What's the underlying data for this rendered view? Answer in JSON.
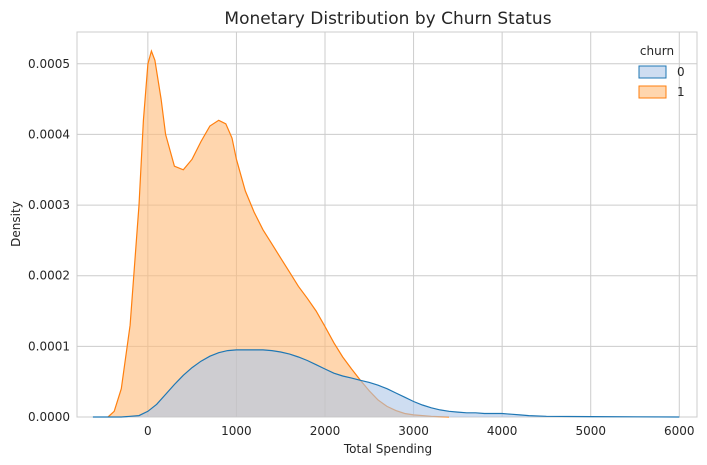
{
  "chart_data": {
    "type": "area",
    "title": "Monetary Distribution by Churn Status",
    "xlabel": "Total Spending",
    "ylabel": "Density",
    "xlim": [
      -800,
      6200
    ],
    "ylim": [
      0,
      0.000545
    ],
    "xticks": [
      {
        "value": 0,
        "label": "0"
      },
      {
        "value": 1000,
        "label": "1000"
      },
      {
        "value": 2000,
        "label": "2000"
      },
      {
        "value": 3000,
        "label": "3000"
      },
      {
        "value": 4000,
        "label": "4000"
      },
      {
        "value": 5000,
        "label": "5000"
      },
      {
        "value": 6000,
        "label": "6000"
      }
    ],
    "yticks": [
      {
        "value": 0,
        "label": "0.0000"
      },
      {
        "value": 0.0001,
        "label": "0.0001"
      },
      {
        "value": 0.0002,
        "label": "0.0002"
      },
      {
        "value": 0.0003,
        "label": "0.0003"
      },
      {
        "value": 0.0004,
        "label": "0.0004"
      },
      {
        "value": 0.0005,
        "label": "0.0005"
      }
    ],
    "grid": true,
    "legend": {
      "title": "churn",
      "placement": "top-right"
    },
    "series": [
      {
        "name": "0",
        "color": "#1f77b4",
        "fill": "#aec7e8",
        "points": [
          [
            -620,
            0.0
          ],
          [
            -300,
            0.0
          ],
          [
            -100,
            2e-06
          ],
          [
            0,
            8e-06
          ],
          [
            100,
            1.8e-05
          ],
          [
            200,
            3.2e-05
          ],
          [
            300,
            4.6e-05
          ],
          [
            400,
            5.9e-05
          ],
          [
            500,
            7e-05
          ],
          [
            600,
            7.9e-05
          ],
          [
            700,
            8.6e-05
          ],
          [
            800,
            9.1e-05
          ],
          [
            900,
            9.4e-05
          ],
          [
            1000,
            9.5e-05
          ],
          [
            1100,
            9.5e-05
          ],
          [
            1200,
            9.5e-05
          ],
          [
            1300,
            9.5e-05
          ],
          [
            1400,
            9.4e-05
          ],
          [
            1500,
            9.2e-05
          ],
          [
            1600,
            8.9e-05
          ],
          [
            1700,
            8.5e-05
          ],
          [
            1800,
            8e-05
          ],
          [
            1900,
            7.4e-05
          ],
          [
            2000,
            6.8e-05
          ],
          [
            2100,
            6.2e-05
          ],
          [
            2200,
            5.8e-05
          ],
          [
            2300,
            5.5e-05
          ],
          [
            2400,
            5.2e-05
          ],
          [
            2500,
            4.9e-05
          ],
          [
            2600,
            4.5e-05
          ],
          [
            2700,
            4e-05
          ],
          [
            2800,
            3.4e-05
          ],
          [
            2900,
            2.8e-05
          ],
          [
            3000,
            2.2e-05
          ],
          [
            3100,
            1.7e-05
          ],
          [
            3200,
            1.3e-05
          ],
          [
            3300,
            1e-05
          ],
          [
            3400,
            8e-06
          ],
          [
            3500,
            7e-06
          ],
          [
            3600,
            6e-06
          ],
          [
            3700,
            6e-06
          ],
          [
            3800,
            5e-06
          ],
          [
            3900,
            5e-06
          ],
          [
            4000,
            5e-06
          ],
          [
            4100,
            4e-06
          ],
          [
            4200,
            3e-06
          ],
          [
            4300,
            2e-06
          ],
          [
            4500,
            1e-06
          ],
          [
            5000,
            5e-07
          ],
          [
            6000,
            0.0
          ]
        ]
      },
      {
        "name": "1",
        "color": "#ff7f0e",
        "fill": "#ffbb78",
        "points": [
          [
            -450,
            0.0
          ],
          [
            -380,
            8e-06
          ],
          [
            -300,
            4e-05
          ],
          [
            -200,
            0.00013
          ],
          [
            -100,
            0.0003
          ],
          [
            -50,
            0.00042
          ],
          [
            0,
            0.0005
          ],
          [
            40,
            0.000518
          ],
          [
            80,
            0.000505
          ],
          [
            150,
            0.00045
          ],
          [
            200,
            0.0004
          ],
          [
            300,
            0.000355
          ],
          [
            400,
            0.00035
          ],
          [
            500,
            0.000365
          ],
          [
            600,
            0.00039
          ],
          [
            700,
            0.000412
          ],
          [
            800,
            0.00042
          ],
          [
            880,
            0.000415
          ],
          [
            950,
            0.000395
          ],
          [
            1000,
            0.000365
          ],
          [
            1100,
            0.00032
          ],
          [
            1200,
            0.00029
          ],
          [
            1300,
            0.000265
          ],
          [
            1400,
            0.000245
          ],
          [
            1500,
            0.000225
          ],
          [
            1600,
            0.000205
          ],
          [
            1700,
            0.000185
          ],
          [
            1800,
            0.000168
          ],
          [
            1900,
            0.00015
          ],
          [
            2000,
            0.000128
          ],
          [
            2100,
            0.000105
          ],
          [
            2200,
            8.5e-05
          ],
          [
            2300,
            6.8e-05
          ],
          [
            2400,
            5.2e-05
          ],
          [
            2500,
            3.7e-05
          ],
          [
            2600,
            2.4e-05
          ],
          [
            2700,
            1.5e-05
          ],
          [
            2800,
            9e-06
          ],
          [
            2900,
            5e-06
          ],
          [
            3000,
            3e-06
          ],
          [
            3200,
            1e-06
          ],
          [
            3400,
            0.0
          ]
        ]
      }
    ]
  }
}
